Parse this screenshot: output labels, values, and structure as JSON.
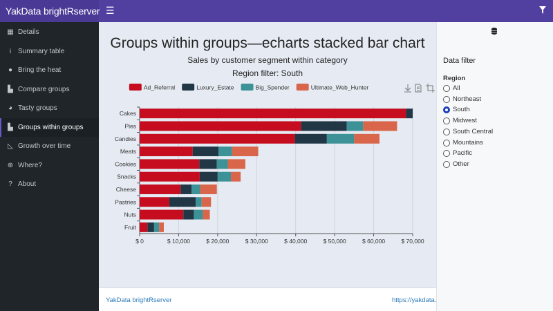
{
  "header": {
    "brand": "YakData brightRserver",
    "menu_icon": "hamburger-icon",
    "filter_icon": "filter-icon"
  },
  "sidebar": {
    "items": [
      {
        "label": "Details",
        "icon": "table-icon",
        "glyph": "▦"
      },
      {
        "label": "Summary table",
        "icon": "info-icon",
        "glyph": "i"
      },
      {
        "label": "Bring the heat",
        "icon": "fire-icon",
        "glyph": "●"
      },
      {
        "label": "Compare groups",
        "icon": "bar-chart-icon",
        "glyph": "▙"
      },
      {
        "label": "Tasty groups",
        "icon": "pie-chart-icon",
        "glyph": "◕"
      },
      {
        "label": "Groups within groups",
        "icon": "bar-chart-icon",
        "glyph": "▙",
        "active": true
      },
      {
        "label": "Growth over time",
        "icon": "area-chart-icon",
        "glyph": "◺"
      },
      {
        "label": "Where?",
        "icon": "globe-icon",
        "glyph": "⊕"
      },
      {
        "label": "About",
        "icon": "question-icon",
        "glyph": "?"
      }
    ]
  },
  "chart_data": {
    "type": "bar",
    "orientation": "horizontal",
    "stacked": true,
    "title": "Groups within groups—echarts stacked bar chart",
    "subtitle": "Sales by customer segment within category",
    "subtitle2": "Region filter: South",
    "categories": [
      "Cakes",
      "Pies",
      "Candies",
      "Meats",
      "Cookies",
      "Snacks",
      "Cheese",
      "Pastries",
      "Nuts",
      "Fruit"
    ],
    "series": [
      {
        "name": "Ad_Referral",
        "color": "#c50d1f",
        "values": [
          68300,
          41400,
          39800,
          13600,
          15300,
          15400,
          10500,
          7600,
          11200,
          2000
        ]
      },
      {
        "name": "Luxury_Estate",
        "color": "#223746",
        "values": [
          1700,
          11700,
          8200,
          6600,
          4500,
          4600,
          2800,
          6800,
          2700,
          1700
        ]
      },
      {
        "name": "Big_Spender",
        "color": "#3c9296",
        "values": [
          0,
          4200,
          7000,
          3500,
          2800,
          3400,
          2200,
          1500,
          2300,
          1300
        ]
      },
      {
        "name": "Ultimate_Web_Hunter",
        "color": "#d9664a",
        "values": [
          0,
          8700,
          6500,
          6700,
          4500,
          2500,
          4300,
          2400,
          1800,
          1200
        ]
      }
    ],
    "xlim": [
      0,
      70000
    ],
    "xticks": [
      "$ 0",
      "$ 10,000",
      "$ 20,000",
      "$ 30,000",
      "$ 40,000",
      "$ 50,000",
      "$ 60,000",
      "$ 70,000"
    ],
    "grid": "vertical",
    "legend": "top"
  },
  "toolbox": [
    "download-icon",
    "data-view-icon",
    "crop-icon"
  ],
  "filter": {
    "icon": "database-icon",
    "title": "Data filter",
    "group_label": "Region",
    "options": [
      "All",
      "Northeast",
      "South",
      "Midwest",
      "South Central",
      "Mountains",
      "Pacific",
      "Other"
    ],
    "selected": "South"
  },
  "footer": {
    "left": "YakData brightRserver",
    "right": "https://yakdata.com"
  }
}
